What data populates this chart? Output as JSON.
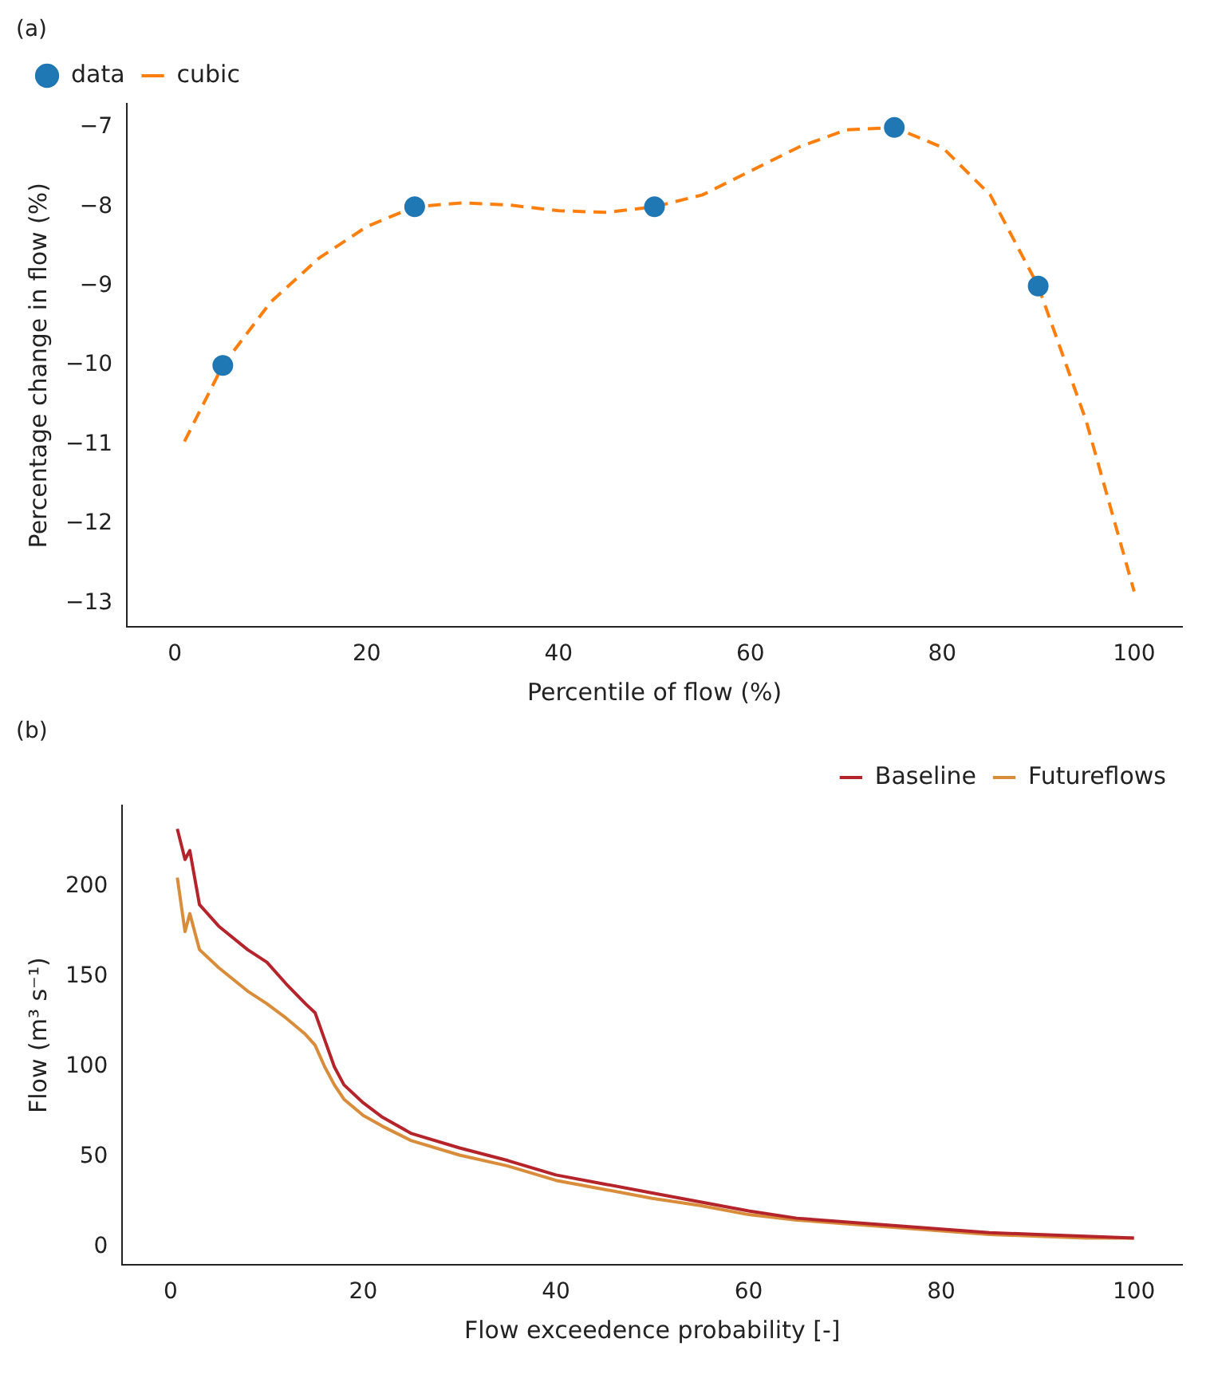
{
  "chart_data": [
    {
      "type": "scatter",
      "annotations": [
        "(a)"
      ],
      "xlabel": "Percentile of flow (%)",
      "ylabel": "Percentage change in flow (%)",
      "xlim": [
        -5,
        105
      ],
      "xticks": [
        0,
        20,
        40,
        60,
        80,
        100
      ],
      "ylim": [
        -13.3,
        -6.7
      ],
      "yticks": [
        -13,
        -12,
        -11,
        -10,
        -9,
        -8,
        -7
      ],
      "legend": "top left",
      "series": [
        {
          "name": "data",
          "marker": "circle",
          "color": "#1f77b4",
          "x": [
            5,
            25,
            50,
            75,
            90
          ],
          "values": [
            -10,
            -8,
            -8,
            -7,
            -9
          ]
        },
        {
          "name": "cubic",
          "type": "line",
          "line_style": "dashed",
          "marker": "none",
          "color": "#ff7f0e",
          "x": [
            1,
            5,
            10,
            15,
            20,
            25,
            30,
            35,
            40,
            45,
            50,
            55,
            60,
            65,
            70,
            75,
            80,
            85,
            90,
            95,
            100
          ],
          "values": [
            -10.96,
            -10,
            -9.2,
            -8.65,
            -8.25,
            -8.0,
            -7.95,
            -7.98,
            -8.05,
            -8.07,
            -8.0,
            -7.85,
            -7.55,
            -7.25,
            -7.03,
            -7.0,
            -7.25,
            -7.85,
            -9.0,
            -10.7,
            -12.85
          ]
        }
      ]
    },
    {
      "type": "line",
      "annotations": [
        "(b)"
      ],
      "xlabel": "Flow exceedence probability [-]",
      "ylabel": "Flow (m³ s⁻¹)",
      "xlim": [
        -5,
        105
      ],
      "xticks": [
        0,
        20,
        40,
        60,
        80,
        100
      ],
      "ylim": [
        -10,
        245
      ],
      "yticks": [
        0,
        50,
        100,
        150,
        200
      ],
      "legend": "top right",
      "line_style": "solid",
      "marker": "none",
      "x": [
        0.7,
        1.5,
        2,
        3,
        5,
        8,
        10,
        12,
        14,
        15,
        16,
        17,
        18,
        20,
        22,
        25,
        30,
        35,
        40,
        45,
        50,
        55,
        60,
        65,
        70,
        75,
        80,
        85,
        90,
        95,
        100
      ],
      "series": [
        {
          "name": "Baseline",
          "color": "#b5242a",
          "values": [
            232,
            215,
            220,
            190,
            178,
            165,
            158,
            146,
            135,
            130,
            115,
            100,
            90,
            80,
            72,
            63,
            55,
            48,
            40,
            35,
            30,
            25,
            20,
            16,
            14,
            12,
            10,
            8,
            7,
            6,
            5
          ]
        },
        {
          "name": "Futureflows",
          "color": "#d98c3a",
          "values": [
            205,
            175,
            185,
            165,
            155,
            142,
            135,
            127,
            118,
            112,
            100,
            90,
            82,
            73,
            67,
            59,
            51,
            45,
            37,
            32,
            27,
            23,
            18,
            15,
            13,
            11,
            9,
            7,
            6,
            5,
            5
          ]
        }
      ]
    }
  ]
}
